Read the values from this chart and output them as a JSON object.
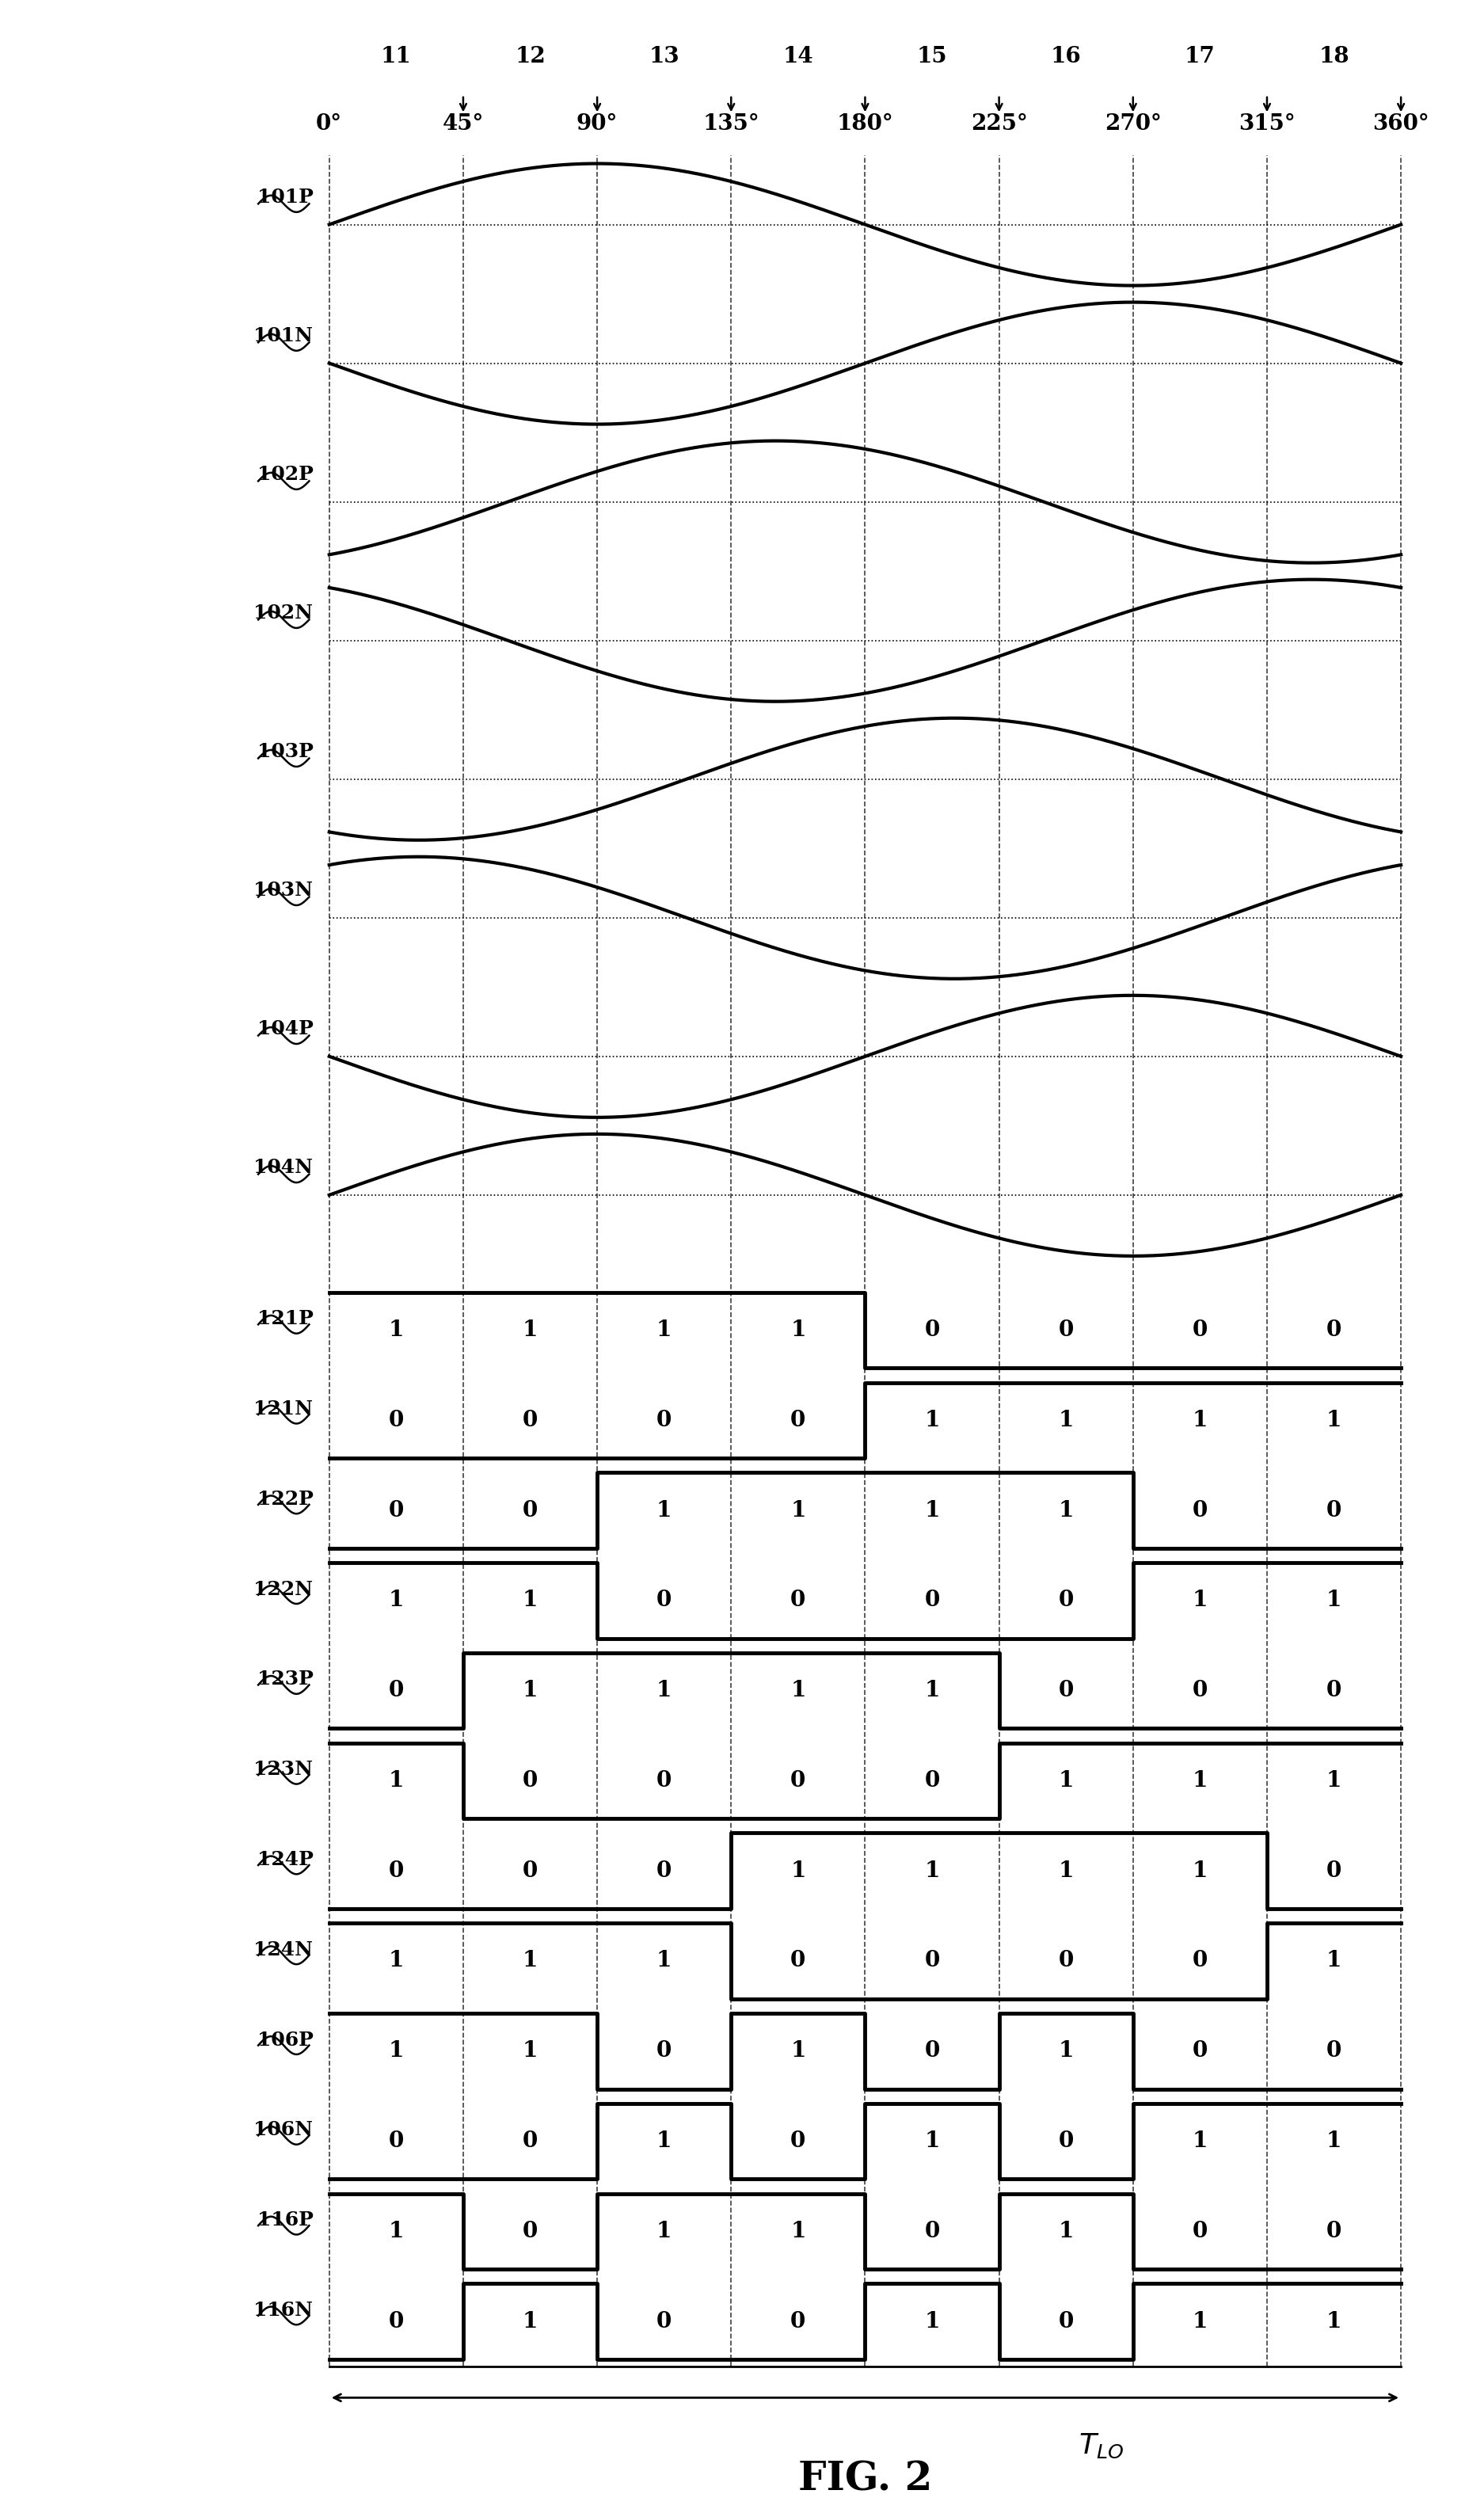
{
  "background_color": "#ffffff",
  "col_labels_deg": [
    "0°",
    "45°",
    "90°",
    "135°",
    "180°",
    "225°",
    "270°",
    "315°",
    "360°"
  ],
  "col_numbers": [
    "11",
    "12",
    "13",
    "14",
    "15",
    "16",
    "17",
    "18"
  ],
  "sine_rows": [
    {
      "label": "101P",
      "phase_deg": 0
    },
    {
      "label": "101N",
      "phase_deg": 180
    },
    {
      "label": "102P",
      "phase_deg": 60
    },
    {
      "label": "102N",
      "phase_deg": 240
    },
    {
      "label": "103P",
      "phase_deg": 120
    },
    {
      "label": "103N",
      "phase_deg": 300
    },
    {
      "label": "104P",
      "phase_deg": 180
    },
    {
      "label": "104N",
      "phase_deg": 0
    }
  ],
  "digital_rows": [
    {
      "label": "121P",
      "values": [
        1,
        1,
        1,
        1,
        0,
        0,
        0,
        0
      ]
    },
    {
      "label": "121N",
      "values": [
        0,
        0,
        0,
        0,
        1,
        1,
        1,
        1
      ]
    },
    {
      "label": "122P",
      "values": [
        0,
        0,
        1,
        1,
        1,
        1,
        0,
        0
      ]
    },
    {
      "label": "122N",
      "values": [
        1,
        1,
        0,
        0,
        0,
        0,
        1,
        1
      ]
    },
    {
      "label": "123P",
      "values": [
        0,
        1,
        1,
        1,
        1,
        0,
        0,
        0
      ]
    },
    {
      "label": "123N",
      "values": [
        1,
        0,
        0,
        0,
        0,
        1,
        1,
        1
      ]
    },
    {
      "label": "124P",
      "values": [
        0,
        0,
        0,
        1,
        1,
        1,
        1,
        0
      ]
    },
    {
      "label": "124N",
      "values": [
        1,
        1,
        1,
        0,
        0,
        0,
        0,
        1
      ]
    },
    {
      "label": "106P",
      "values": [
        1,
        1,
        0,
        1,
        0,
        1,
        0,
        0
      ]
    },
    {
      "label": "106N",
      "values": [
        0,
        0,
        1,
        0,
        1,
        0,
        1,
        1
      ]
    },
    {
      "label": "116P",
      "values": [
        1,
        0,
        1,
        1,
        0,
        1,
        0,
        0
      ]
    },
    {
      "label": "116N",
      "values": [
        0,
        1,
        0,
        0,
        1,
        0,
        1,
        1
      ]
    }
  ],
  "fig_label": "FIG. 2",
  "tlo_label": "T_{LO}",
  "lw_sine": 3.0,
  "lw_digital": 3.5,
  "lw_grid": 1.2,
  "fontsize_label": 18,
  "fontsize_header": 20,
  "fontsize_digit": 20,
  "fontsize_fig": 36
}
